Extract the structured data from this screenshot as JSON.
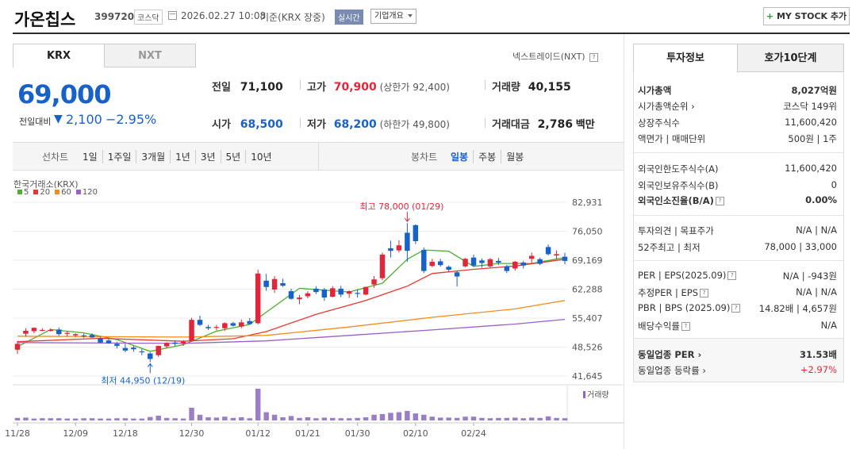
{
  "header": {
    "company_name": "가온칩스",
    "code": "399720",
    "market_badge": "코스닥",
    "datetime_text": "2026.02.27 10:08",
    "basis_text": "기준(KRX 장중)",
    "realtime_badge": "실시간",
    "company_info_dropdown": "기업개요",
    "my_stock_button": "MY STOCK 추가",
    "plus_symbol": "+"
  },
  "market_tabs": {
    "krx": "KRX",
    "nxt": "NXT",
    "nextrade_link": "넥스트레이드(NXT)"
  },
  "price": {
    "current": "69,000",
    "change_label": "전일대비",
    "change_arrow": "▼",
    "change_amount": "2,100",
    "change_rate": "−2.95%"
  },
  "quote": {
    "prev_close_label": "전일",
    "prev_close": "71,100",
    "high_label": "고가",
    "high": "70,900",
    "upper_limit": "(상한가 92,400)",
    "volume_label": "거래량",
    "volume": "40,155",
    "open_label": "시가",
    "open": "68,500",
    "low_label": "저가",
    "low": "68,200",
    "lower_limit": "(하한가 49,800)",
    "value_label": "거래대금",
    "value": "2,786",
    "value_unit": "백만"
  },
  "chart_toolbar": {
    "line_chart_label": "선차트",
    "periods": [
      "1일",
      "1주일",
      "3개월",
      "1년",
      "3년",
      "5년",
      "10년"
    ],
    "candle_chart_label": "봉차트",
    "candle_periods": [
      "일봉",
      "주봉",
      "월봉"
    ]
  },
  "chart_legend": {
    "source": "한국거래소(KRX)",
    "ma": [
      {
        "label": "5",
        "color": "#4caf2f"
      },
      {
        "label": "20",
        "color": "#e53935"
      },
      {
        "label": "60",
        "color": "#f28c1e"
      },
      {
        "label": "120",
        "color": "#9b5fc8"
      }
    ],
    "volume_label": "거래량"
  },
  "chart_annotations": {
    "high": "최고 78,000 (01/29)",
    "low": "최저 44,950 (12/19)"
  },
  "chart_data": {
    "type": "candlestick",
    "y_ticks": [
      "82,931",
      "76,050",
      "69,169",
      "62,288",
      "55,407",
      "48,526",
      "41,645"
    ],
    "ylim": [
      41645,
      82931
    ],
    "x_ticks": [
      "11/28",
      "12/09",
      "12/18",
      "12/30",
      "01/12",
      "01/21",
      "01/30",
      "02/10",
      "02/24"
    ],
    "colors": {
      "up": "#e0263a",
      "down": "#1861c9"
    },
    "candles": [
      {
        "o": 47900,
        "h": 50000,
        "l": 46900,
        "c": 49300
      },
      {
        "o": 51700,
        "h": 53000,
        "l": 51000,
        "c": 52400
      },
      {
        "o": 52300,
        "h": 53200,
        "l": 51800,
        "c": 53100
      },
      {
        "o": 52600,
        "h": 53000,
        "l": 52300,
        "c": 52600
      },
      {
        "o": 52600,
        "h": 53000,
        "l": 52200,
        "c": 52600
      },
      {
        "o": 52700,
        "h": 53200,
        "l": 51200,
        "c": 51600
      },
      {
        "o": 51700,
        "h": 52300,
        "l": 51000,
        "c": 51900
      },
      {
        "o": 51300,
        "h": 51800,
        "l": 50900,
        "c": 51600
      },
      {
        "o": 51300,
        "h": 51700,
        "l": 50700,
        "c": 51200
      },
      {
        "o": 51400,
        "h": 51800,
        "l": 50700,
        "c": 50800
      },
      {
        "o": 50600,
        "h": 51000,
        "l": 49400,
        "c": 49600
      },
      {
        "o": 50100,
        "h": 50500,
        "l": 49300,
        "c": 49400
      },
      {
        "o": 49300,
        "h": 49700,
        "l": 48200,
        "c": 48800
      },
      {
        "o": 48300,
        "h": 49300,
        "l": 47300,
        "c": 47700
      },
      {
        "o": 48400,
        "h": 48800,
        "l": 47400,
        "c": 48000
      },
      {
        "o": 47500,
        "h": 48100,
        "l": 46600,
        "c": 47400
      },
      {
        "o": 47000,
        "h": 47300,
        "l": 44950,
        "c": 45700
      },
      {
        "o": 46600,
        "h": 48900,
        "l": 46200,
        "c": 48800
      },
      {
        "o": 48700,
        "h": 49700,
        "l": 48300,
        "c": 49500
      },
      {
        "o": 49600,
        "h": 50100,
        "l": 48800,
        "c": 49300
      },
      {
        "o": 49400,
        "h": 50200,
        "l": 48800,
        "c": 49800
      },
      {
        "o": 50000,
        "h": 55500,
        "l": 49800,
        "c": 55000
      },
      {
        "o": 55000,
        "h": 56000,
        "l": 53500,
        "c": 53800
      },
      {
        "o": 53300,
        "h": 53800,
        "l": 52600,
        "c": 53000
      },
      {
        "o": 53200,
        "h": 53800,
        "l": 52500,
        "c": 53300
      },
      {
        "o": 53000,
        "h": 54400,
        "l": 52400,
        "c": 54200
      },
      {
        "o": 54200,
        "h": 54500,
        "l": 53400,
        "c": 53600
      },
      {
        "o": 53400,
        "h": 55100,
        "l": 53000,
        "c": 54400
      },
      {
        "o": 54700,
        "h": 55400,
        "l": 53900,
        "c": 54000
      },
      {
        "o": 54200,
        "h": 66900,
        "l": 53900,
        "c": 66000
      },
      {
        "o": 64300,
        "h": 65900,
        "l": 61900,
        "c": 62800
      },
      {
        "o": 62200,
        "h": 65400,
        "l": 61400,
        "c": 64700
      },
      {
        "o": 63700,
        "h": 64800,
        "l": 62800,
        "c": 63100
      },
      {
        "o": 61800,
        "h": 62400,
        "l": 59800,
        "c": 60000
      },
      {
        "o": 59900,
        "h": 60900,
        "l": 58700,
        "c": 60300
      },
      {
        "o": 60600,
        "h": 61800,
        "l": 60100,
        "c": 61300
      },
      {
        "o": 62400,
        "h": 63000,
        "l": 61100,
        "c": 61600
      },
      {
        "o": 62200,
        "h": 62600,
        "l": 59500,
        "c": 60300
      },
      {
        "o": 60500,
        "h": 63000,
        "l": 60300,
        "c": 62500
      },
      {
        "o": 62400,
        "h": 63100,
        "l": 60400,
        "c": 61000
      },
      {
        "o": 61200,
        "h": 62000,
        "l": 60200,
        "c": 61800
      },
      {
        "o": 61400,
        "h": 62300,
        "l": 60300,
        "c": 61200
      },
      {
        "o": 61000,
        "h": 62900,
        "l": 60800,
        "c": 62800
      },
      {
        "o": 63400,
        "h": 65400,
        "l": 62600,
        "c": 64600
      },
      {
        "o": 64900,
        "h": 71000,
        "l": 64400,
        "c": 70500
      },
      {
        "o": 72000,
        "h": 73800,
        "l": 69800,
        "c": 71400
      },
      {
        "o": 71500,
        "h": 73900,
        "l": 71000,
        "c": 72700
      },
      {
        "o": 75700,
        "h": 78000,
        "l": 68800,
        "c": 71400
      },
      {
        "o": 77500,
        "h": 77700,
        "l": 73000,
        "c": 73700
      },
      {
        "o": 71600,
        "h": 72200,
        "l": 66100,
        "c": 66600
      },
      {
        "o": 67800,
        "h": 69500,
        "l": 67500,
        "c": 68800
      },
      {
        "o": 68900,
        "h": 69500,
        "l": 67600,
        "c": 68000
      },
      {
        "o": 67600,
        "h": 67900,
        "l": 66400,
        "c": 66900
      },
      {
        "o": 66300,
        "h": 66700,
        "l": 62900,
        "c": 65300
      },
      {
        "o": 67700,
        "h": 69700,
        "l": 67500,
        "c": 69500
      },
      {
        "o": 69800,
        "h": 70500,
        "l": 67600,
        "c": 67900
      },
      {
        "o": 69100,
        "h": 69600,
        "l": 67400,
        "c": 68500
      },
      {
        "o": 67700,
        "h": 69700,
        "l": 67400,
        "c": 69400
      },
      {
        "o": 69000,
        "h": 69700,
        "l": 68000,
        "c": 68600
      },
      {
        "o": 67700,
        "h": 68100,
        "l": 66100,
        "c": 66600
      },
      {
        "o": 67200,
        "h": 69000,
        "l": 66700,
        "c": 68800
      },
      {
        "o": 68600,
        "h": 69000,
        "l": 67200,
        "c": 67900
      },
      {
        "o": 69500,
        "h": 71000,
        "l": 68500,
        "c": 70200
      },
      {
        "o": 69400,
        "h": 69800,
        "l": 68000,
        "c": 68300
      },
      {
        "o": 72300,
        "h": 72900,
        "l": 70300,
        "c": 70600
      },
      {
        "o": 70300,
        "h": 71500,
        "l": 69400,
        "c": 70600
      },
      {
        "o": 70000,
        "h": 70900,
        "l": 68200,
        "c": 69000
      }
    ],
    "ma": {
      "ma5": [
        [
          0,
          48600
        ],
        [
          4,
          52700
        ],
        [
          8,
          51900
        ],
        [
          12,
          50300
        ],
        [
          16,
          47500
        ],
        [
          20,
          49100
        ],
        [
          24,
          52300
        ],
        [
          28,
          53900
        ],
        [
          30,
          56800
        ],
        [
          34,
          62500
        ],
        [
          40,
          61600
        ],
        [
          44,
          63700
        ],
        [
          47,
          69400
        ],
        [
          49,
          71600
        ],
        [
          52,
          71300
        ],
        [
          55,
          67700
        ],
        [
          58,
          68400
        ],
        [
          62,
          68400
        ],
        [
          66,
          69800
        ]
      ],
      "ma20": [
        [
          0,
          49800
        ],
        [
          10,
          50600
        ],
        [
          20,
          49900
        ],
        [
          26,
          50500
        ],
        [
          30,
          52200
        ],
        [
          36,
          56300
        ],
        [
          42,
          59600
        ],
        [
          47,
          63000
        ],
        [
          50,
          66000
        ],
        [
          55,
          67000
        ],
        [
          60,
          67800
        ],
        [
          66,
          69400
        ]
      ],
      "ma60": [
        [
          0,
          51100
        ],
        [
          20,
          50900
        ],
        [
          30,
          51300
        ],
        [
          40,
          53300
        ],
        [
          50,
          55600
        ],
        [
          60,
          57600
        ],
        [
          66,
          59600
        ]
      ],
      "ma120": [
        [
          0,
          49600
        ],
        [
          20,
          49400
        ],
        [
          30,
          50000
        ],
        [
          40,
          51300
        ],
        [
          50,
          52600
        ],
        [
          60,
          54000
        ],
        [
          66,
          55100
        ]
      ]
    },
    "volume_relative": [
      0.08,
      0.09,
      0.06,
      0.07,
      0.07,
      0.07,
      0.06,
      0.06,
      0.07,
      0.07,
      0.06,
      0.06,
      0.07,
      0.07,
      0.06,
      0.06,
      0.11,
      0.15,
      0.08,
      0.07,
      0.06,
      0.4,
      0.18,
      0.1,
      0.09,
      0.12,
      0.08,
      0.1,
      0.07,
      1.0,
      0.26,
      0.18,
      0.1,
      0.14,
      0.08,
      0.1,
      0.07,
      0.09,
      0.08,
      0.07,
      0.07,
      0.08,
      0.1,
      0.18,
      0.2,
      0.24,
      0.26,
      0.3,
      0.22,
      0.18,
      0.12,
      0.09,
      0.09,
      0.08,
      0.12,
      0.12,
      0.08,
      0.07,
      0.08,
      0.08,
      0.09,
      0.07,
      0.09,
      0.08,
      0.13,
      0.08,
      0.07
    ]
  },
  "info_panel": {
    "tabs": [
      "투자정보",
      "호가10단계"
    ],
    "rows1": [
      {
        "label": "시가총액",
        "value": "8,027억원",
        "bold": true
      },
      {
        "label": "시가총액순위 ›",
        "value": "코스닥 149위"
      },
      {
        "label": "상장주식수",
        "value": "11,600,420"
      },
      {
        "label": "액면가 | 매매단위",
        "value": "500원 | 1주"
      }
    ],
    "rows2": [
      {
        "label": "외국인한도주식수(A)",
        "value": "11,600,420"
      },
      {
        "label": "외국인보유주식수(B)",
        "value": "0"
      },
      {
        "label": "외국인소진율(B/A)",
        "value": "0.00%",
        "bold": true,
        "icon": true
      }
    ],
    "rows3": [
      {
        "label": "투자의견 | 목표주가",
        "value": "N/A | N/A"
      },
      {
        "label": "52주최고 | 최저",
        "value": "78,000 | 33,000"
      }
    ],
    "rows4": [
      {
        "label": "PER | EPS(2025.09)",
        "value": "N/A | -943원",
        "icon": true
      },
      {
        "label": "추정PER | EPS",
        "value": "N/A | N/A",
        "icon": true
      },
      {
        "label": "PBR | BPS (2025.09)",
        "value": "14.82배 | 4,657원",
        "icon": true
      },
      {
        "label": "배당수익률",
        "value": "N/A",
        "icon": true
      }
    ],
    "rows5": [
      {
        "label": "동일업종 PER ›",
        "value": "31.53배",
        "bold": true
      },
      {
        "label": "동일업종 등락률 ›",
        "value": "+2.97%",
        "red": true
      }
    ]
  },
  "icon_names": [
    "calendar-icon",
    "help-icon",
    "dropdown-arrow-icon"
  ]
}
